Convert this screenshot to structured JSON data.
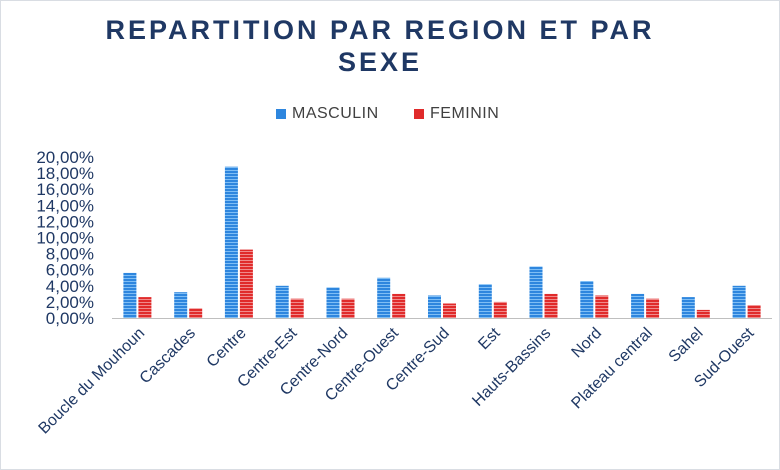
{
  "chart_data": {
    "type": "bar",
    "title": "REPARTITION PAR REGION ET PAR SEXE",
    "categories": [
      "Boucle du Mouhoun",
      "Cascades",
      "Centre",
      "Centre-Est",
      "Centre-Nord",
      "Centre-Ouest",
      "Centre-Sud",
      "Est",
      "Hauts-Bassins",
      "Nord",
      "Plateau central",
      "Sahel",
      "Sud-Ouest"
    ],
    "series": [
      {
        "name": "MASCULIN",
        "color": "#2e86de",
        "values": [
          5.6,
          3.2,
          18.8,
          4.0,
          3.8,
          5.0,
          2.8,
          4.2,
          6.4,
          4.6,
          3.0,
          2.6,
          4.0
        ]
      },
      {
        "name": "FEMININ",
        "color": "#e02b2b",
        "values": [
          2.6,
          1.2,
          8.5,
          2.4,
          2.4,
          3.0,
          1.8,
          2.0,
          3.0,
          2.8,
          2.4,
          1.0,
          1.6
        ]
      }
    ],
    "yticks": [
      "0,00%",
      "2,00%",
      "4,00%",
      "6,00%",
      "8,00%",
      "10,00%",
      "12,00%",
      "14,00%",
      "16,00%",
      "18,00%",
      "20,00%"
    ],
    "ylim": [
      0,
      20
    ],
    "xlabel": "",
    "ylabel": "",
    "grid": false,
    "legend_position": "top-center"
  }
}
